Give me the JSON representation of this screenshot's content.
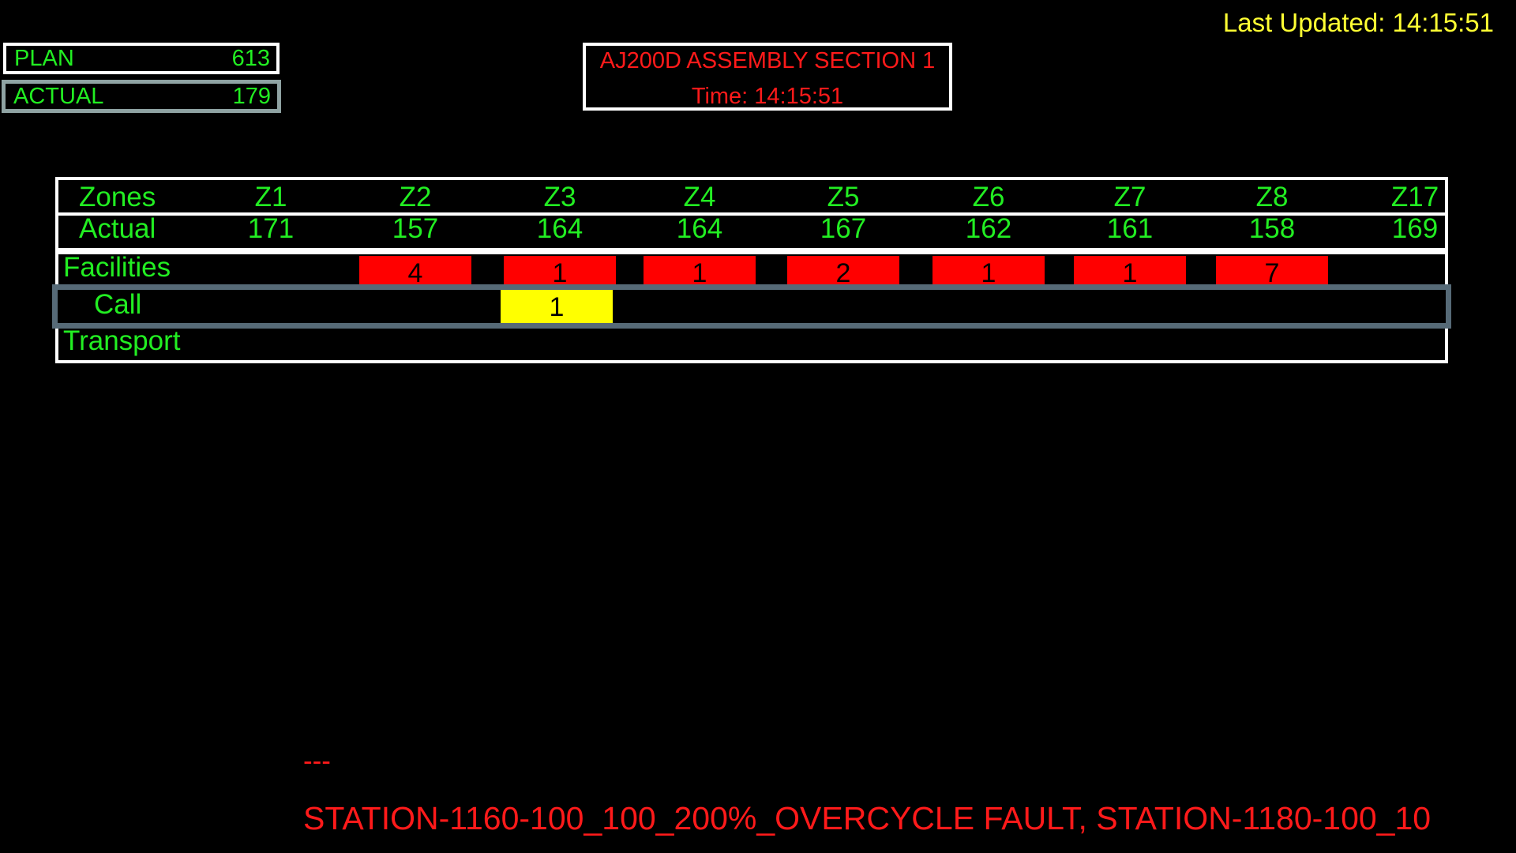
{
  "last_updated": "Last Updated: 14:15:51",
  "plan": {
    "label": "PLAN",
    "value": "613"
  },
  "actual_counter": {
    "label": "ACTUAL",
    "value": "179"
  },
  "title": {
    "line1": "AJ200D ASSEMBLY SECTION 1",
    "line2": "Time: 14:15:51"
  },
  "table": {
    "zones_label": "Zones",
    "actual_label": "Actual",
    "facilities_label": "Facilities",
    "call_label": "Call",
    "transport_label": "Transport",
    "zones": [
      "Z1",
      "Z2",
      "Z3",
      "Z4",
      "Z5",
      "Z6",
      "Z7",
      "Z8",
      "Z17"
    ],
    "actual": [
      "171",
      "157",
      "164",
      "164",
      "167",
      "162",
      "161",
      "158",
      "169"
    ],
    "facilities": [
      "",
      "4",
      "1",
      "1",
      "2",
      "1",
      "1",
      "7",
      ""
    ],
    "call": [
      "",
      "",
      "1",
      "",
      "",
      "",
      "",
      "",
      ""
    ],
    "colors": {
      "alarm": "#ff0000",
      "call": "#ffff00",
      "text": "#22ee22"
    }
  },
  "ticker": {
    "separator": "---",
    "text": "STATION-1160-100_100_200%_OVERCYCLE FAULT, STATION-1180-100_10"
  }
}
